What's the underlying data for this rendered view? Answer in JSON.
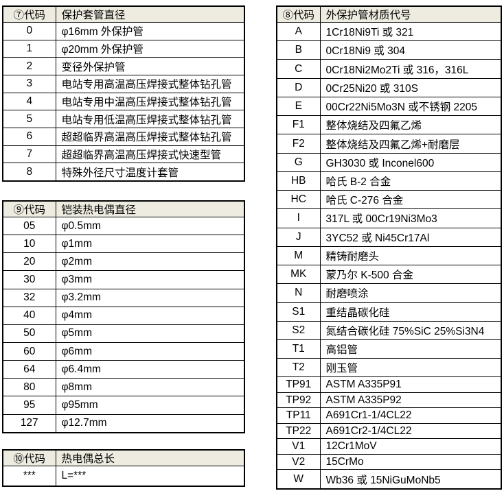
{
  "style": {
    "page_bg": "#FFFFFF",
    "header_bg": "#EEECE1",
    "border_color": "#000000",
    "text_color": "#000000"
  },
  "tables": {
    "sheath_diameter": {
      "headers": [
        "⑦代码",
        "保护套管直径"
      ],
      "rows": [
        [
          "0",
          "φ16mm 外保护管"
        ],
        [
          "1",
          "φ20mm 外保护管"
        ],
        [
          "2",
          "变径外保护管"
        ],
        [
          "3",
          "电站专用高温高压焊接式整体钻孔管"
        ],
        [
          "4",
          "电站专用中温高压焊接式整体钻孔管"
        ],
        [
          "5",
          "电站专用低温高压焊接式整体钻孔管"
        ],
        [
          "6",
          "超超临界高温高压焊接式整体钻孔管"
        ],
        [
          "7",
          "超超临界高温高压焊接式快速型管"
        ],
        [
          "8",
          "特殊外径尺寸温度计套管"
        ]
      ]
    },
    "mi_thermocouple_diameter": {
      "headers": [
        "⑨代码",
        "铠装热电偶直径"
      ],
      "rows": [
        [
          "05",
          "φ0.5mm"
        ],
        [
          "10",
          "φ1mm"
        ],
        [
          "20",
          "φ2mm"
        ],
        [
          "30",
          "φ3mm"
        ],
        [
          "32",
          "φ3.2mm"
        ],
        [
          "40",
          "φ4mm"
        ],
        [
          "50",
          "φ5mm"
        ],
        [
          "60",
          "φ6mm"
        ],
        [
          "64",
          "φ6.4mm"
        ],
        [
          "80",
          "φ8mm"
        ],
        [
          "95",
          "φ95mm"
        ],
        [
          "127",
          "φ12.7mm"
        ]
      ]
    },
    "total_length": {
      "headers": [
        "⑩代码",
        "热电偶总长"
      ],
      "rows": [
        [
          "***",
          "L=***"
        ]
      ]
    },
    "outer_tube_material": {
      "headers": [
        "⑧代码",
        "外保护管材质代号"
      ],
      "rows": [
        [
          "A",
          "1Cr18Ni9Ti 或 321"
        ],
        [
          "B",
          "0Cr18Ni9 或 304"
        ],
        [
          "C",
          "0Cr18Ni2Mo2Ti 或 316，316L"
        ],
        [
          "D",
          "0Cr25Ni20 或 310S"
        ],
        [
          "E",
          "00Cr22Ni5Mo3N 或不锈钢 2205"
        ],
        [
          "F1",
          "整体烧结及四氟乙烯"
        ],
        [
          "F2",
          "整体烧结及四氟乙烯+耐磨层"
        ],
        [
          "G",
          "GH3030 或 Inconel600"
        ],
        [
          "HB",
          "哈氏 B-2 合金"
        ],
        [
          "HC",
          "哈氏 C-276 合金"
        ],
        [
          "I",
          "317L 或 00Cr19Ni3Mo3"
        ],
        [
          "J",
          "3YC52 或 Ni45Cr17Al"
        ],
        [
          "M",
          "精铸耐磨头"
        ],
        [
          "MK",
          "蒙乃尔 K-500 合金"
        ],
        [
          "N",
          "耐磨喷涂"
        ],
        [
          "S1",
          "重结晶碳化硅"
        ],
        [
          "S2",
          "氮结合碳化硅 75%SiC 25%Si3N4"
        ],
        [
          "T1",
          "高铝管"
        ],
        [
          "T2",
          "刚玉管"
        ],
        [
          "TP91",
          "ASTM A335P91"
        ],
        [
          "TP92",
          "ASTM A335P92"
        ],
        [
          "TP11",
          "A691Cr1-1/4CL22"
        ],
        [
          "TP22",
          "A691Cr2-1/4CL22"
        ],
        [
          "V1",
          "12Cr1MoV"
        ],
        [
          "V2",
          "15CrMo"
        ],
        [
          "W",
          "Wb36 或 15NiGuMoNb5"
        ]
      ]
    }
  }
}
